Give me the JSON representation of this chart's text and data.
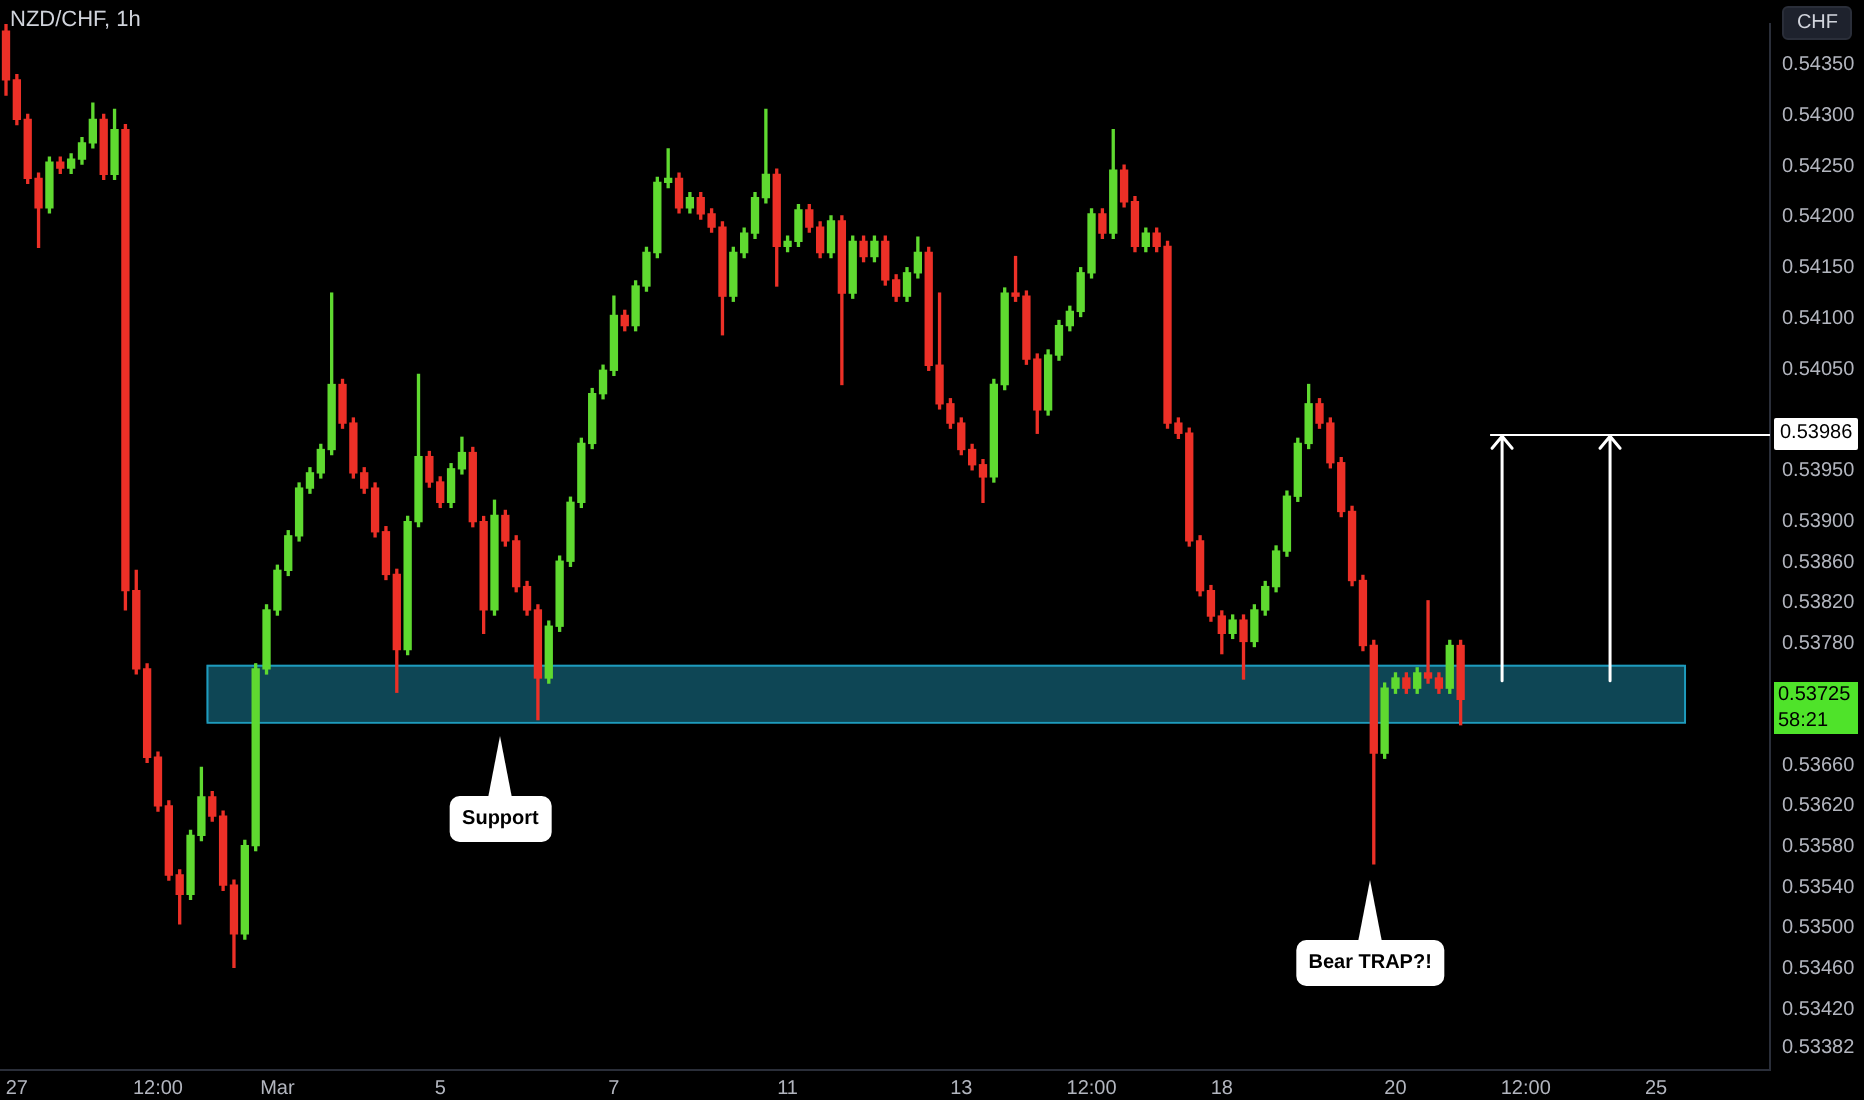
{
  "chart_data": {
    "type": "candlestick",
    "title": "NZD/CHF, 1h",
    "ylabel": "CHF",
    "categories": [
      null,
      "27",
      null,
      null,
      null,
      null,
      null,
      null,
      null,
      null,
      null,
      null,
      null,
      null,
      "12:00",
      null,
      null,
      null,
      null,
      null,
      null,
      null,
      null,
      null,
      null,
      "Mar",
      null,
      null,
      null,
      null,
      null,
      null,
      null,
      null,
      null,
      null,
      null,
      null,
      null,
      null,
      "5",
      null,
      null,
      null,
      null,
      null,
      null,
      null,
      null,
      null,
      null,
      null,
      null,
      null,
      null,
      null,
      "7",
      null,
      null,
      null,
      null,
      null,
      null,
      null,
      null,
      null,
      null,
      null,
      null,
      null,
      null,
      null,
      "11",
      null,
      null,
      null,
      null,
      null,
      null,
      null,
      null,
      null,
      null,
      null,
      null,
      null,
      null,
      null,
      "13",
      null,
      null,
      null,
      null,
      null,
      null,
      null,
      null,
      null,
      null,
      null,
      "12:00",
      null,
      null,
      null,
      null,
      null,
      null,
      null,
      null,
      null,
      null,
      null,
      "18",
      null,
      null,
      null,
      null,
      null,
      null,
      null,
      null,
      null,
      null,
      null,
      null,
      null,
      null,
      null,
      "20",
      null,
      null,
      null,
      null,
      null,
      null,
      null,
      null,
      null,
      null,
      null,
      "12:00",
      null,
      null,
      null,
      null,
      null,
      null,
      null,
      null,
      null,
      null,
      null,
      "25",
      null,
      null,
      null,
      null,
      null,
      null,
      null,
      null,
      null,
      null
    ],
    "ohlc": [
      [
        0.54383,
        0.5439,
        0.5432,
        0.54335
      ],
      [
        0.54335,
        0.5434,
        0.54291,
        0.54296
      ],
      [
        0.54296,
        0.54301,
        0.54233,
        0.54238
      ],
      [
        0.54238,
        0.54243,
        0.5417,
        0.54209
      ],
      [
        0.54209,
        0.54259,
        0.54204,
        0.54254
      ],
      [
        0.54254,
        0.54259,
        0.54243,
        0.54248
      ],
      [
        0.54248,
        0.54262,
        0.54243,
        0.54257
      ],
      [
        0.54257,
        0.54278,
        0.54252,
        0.54273
      ],
      [
        0.54273,
        0.54312,
        0.54268,
        0.54296
      ],
      [
        0.54296,
        0.54301,
        0.54237,
        0.54242
      ],
      [
        0.54242,
        0.54306,
        0.54237,
        0.54286
      ],
      [
        0.54286,
        0.54291,
        0.53813,
        0.53832
      ],
      [
        0.53832,
        0.53852,
        0.5375,
        0.53755
      ],
      [
        0.53755,
        0.5376,
        0.53663,
        0.53668
      ],
      [
        0.53668,
        0.53673,
        0.53615,
        0.5362
      ],
      [
        0.5362,
        0.53625,
        0.53547,
        0.53552
      ],
      [
        0.53552,
        0.53557,
        0.53504,
        0.53533
      ],
      [
        0.53533,
        0.53596,
        0.53528,
        0.53591
      ],
      [
        0.53591,
        0.53658,
        0.53586,
        0.53629
      ],
      [
        0.53629,
        0.53634,
        0.53605,
        0.5361
      ],
      [
        0.5361,
        0.53615,
        0.53537,
        0.53542
      ],
      [
        0.53542,
        0.53547,
        0.53461,
        0.53494
      ],
      [
        0.53494,
        0.53586,
        0.53489,
        0.53581
      ],
      [
        0.53581,
        0.5376,
        0.53576,
        0.53755
      ],
      [
        0.53755,
        0.53818,
        0.5375,
        0.53813
      ],
      [
        0.53813,
        0.53857,
        0.53808,
        0.53852
      ],
      [
        0.53852,
        0.53891,
        0.53847,
        0.53886
      ],
      [
        0.53886,
        0.53938,
        0.53881,
        0.53933
      ],
      [
        0.53933,
        0.53953,
        0.53928,
        0.53948
      ],
      [
        0.53948,
        0.53976,
        0.53943,
        0.53971
      ],
      [
        0.53971,
        0.54125,
        0.53966,
        0.54035
      ],
      [
        0.54035,
        0.5404,
        0.53992,
        0.53997
      ],
      [
        0.53997,
        0.54002,
        0.53943,
        0.53948
      ],
      [
        0.53948,
        0.53953,
        0.53928,
        0.53933
      ],
      [
        0.53933,
        0.53938,
        0.53885,
        0.5389
      ],
      [
        0.5389,
        0.53895,
        0.53843,
        0.53848
      ],
      [
        0.53848,
        0.53853,
        0.53732,
        0.53774
      ],
      [
        0.53774,
        0.53905,
        0.53769,
        0.539
      ],
      [
        0.539,
        0.54045,
        0.53895,
        0.53964
      ],
      [
        0.53964,
        0.53969,
        0.53934,
        0.53939
      ],
      [
        0.53939,
        0.53944,
        0.53914,
        0.53919
      ],
      [
        0.53919,
        0.53957,
        0.53914,
        0.53952
      ],
      [
        0.53952,
        0.53983,
        0.53947,
        0.53968
      ],
      [
        0.53968,
        0.53973,
        0.53895,
        0.539
      ],
      [
        0.539,
        0.53905,
        0.5379,
        0.53813
      ],
      [
        0.53813,
        0.53921,
        0.53808,
        0.53906
      ],
      [
        0.53906,
        0.53911,
        0.53876,
        0.53881
      ],
      [
        0.53881,
        0.53886,
        0.53831,
        0.53836
      ],
      [
        0.53836,
        0.53841,
        0.53808,
        0.53813
      ],
      [
        0.53813,
        0.53818,
        0.53705,
        0.53746
      ],
      [
        0.53746,
        0.53802,
        0.53741,
        0.53797
      ],
      [
        0.53797,
        0.53866,
        0.53792,
        0.53861
      ],
      [
        0.53861,
        0.53924,
        0.53856,
        0.53919
      ],
      [
        0.53919,
        0.53982,
        0.53914,
        0.53977
      ],
      [
        0.53977,
        0.54031,
        0.53972,
        0.54026
      ],
      [
        0.54026,
        0.54054,
        0.54021,
        0.54049
      ],
      [
        0.54049,
        0.54122,
        0.54044,
        0.54103
      ],
      [
        0.54103,
        0.54108,
        0.54088,
        0.54093
      ],
      [
        0.54093,
        0.54137,
        0.54088,
        0.54132
      ],
      [
        0.54132,
        0.5417,
        0.54127,
        0.54165
      ],
      [
        0.54165,
        0.54239,
        0.5416,
        0.54234
      ],
      [
        0.54234,
        0.54267,
        0.54229,
        0.54238
      ],
      [
        0.54238,
        0.54243,
        0.54204,
        0.54209
      ],
      [
        0.54209,
        0.54224,
        0.54204,
        0.54219
      ],
      [
        0.54219,
        0.54224,
        0.54198,
        0.54203
      ],
      [
        0.54203,
        0.54208,
        0.54185,
        0.5419
      ],
      [
        0.5419,
        0.54195,
        0.54084,
        0.54122
      ],
      [
        0.54122,
        0.5417,
        0.54117,
        0.54165
      ],
      [
        0.54165,
        0.54189,
        0.5416,
        0.54184
      ],
      [
        0.54184,
        0.54224,
        0.54179,
        0.54219
      ],
      [
        0.54219,
        0.54306,
        0.54214,
        0.54242
      ],
      [
        0.54242,
        0.54247,
        0.54132,
        0.54171
      ],
      [
        0.54171,
        0.54181,
        0.54166,
        0.54176
      ],
      [
        0.54176,
        0.54212,
        0.54171,
        0.54207
      ],
      [
        0.54207,
        0.54212,
        0.54185,
        0.5419
      ],
      [
        0.5419,
        0.54195,
        0.5416,
        0.54165
      ],
      [
        0.54165,
        0.54201,
        0.5416,
        0.54196
      ],
      [
        0.54196,
        0.54201,
        0.54035,
        0.54125
      ],
      [
        0.54125,
        0.54181,
        0.5412,
        0.54176
      ],
      [
        0.54176,
        0.54181,
        0.54156,
        0.54161
      ],
      [
        0.54161,
        0.54181,
        0.54156,
        0.54176
      ],
      [
        0.54176,
        0.54181,
        0.54133,
        0.54138
      ],
      [
        0.54138,
        0.54143,
        0.54117,
        0.54122
      ],
      [
        0.54122,
        0.5415,
        0.54117,
        0.54145
      ],
      [
        0.54145,
        0.5418,
        0.5414,
        0.54165
      ],
      [
        0.54165,
        0.5417,
        0.54049,
        0.54054
      ],
      [
        0.54054,
        0.54125,
        0.54011,
        0.54016
      ],
      [
        0.54016,
        0.54021,
        0.53992,
        0.53997
      ],
      [
        0.53997,
        0.54002,
        0.53966,
        0.53971
      ],
      [
        0.53971,
        0.53976,
        0.53951,
        0.53956
      ],
      [
        0.53956,
        0.53961,
        0.53919,
        0.53944
      ],
      [
        0.53944,
        0.5404,
        0.53939,
        0.54035
      ],
      [
        0.54035,
        0.5413,
        0.5403,
        0.54125
      ],
      [
        0.54125,
        0.54161,
        0.54117,
        0.54122
      ],
      [
        0.54122,
        0.54127,
        0.54055,
        0.5406
      ],
      [
        0.5406,
        0.54065,
        0.53987,
        0.5401
      ],
      [
        0.5401,
        0.54069,
        0.54005,
        0.54064
      ],
      [
        0.54064,
        0.54098,
        0.54059,
        0.54093
      ],
      [
        0.54093,
        0.54112,
        0.54088,
        0.54107
      ],
      [
        0.54107,
        0.5415,
        0.54102,
        0.54145
      ],
      [
        0.54145,
        0.54208,
        0.5414,
        0.54203
      ],
      [
        0.54203,
        0.54208,
        0.54179,
        0.54184
      ],
      [
        0.54184,
        0.54286,
        0.54179,
        0.54246
      ],
      [
        0.54246,
        0.54251,
        0.5421,
        0.54215
      ],
      [
        0.54215,
        0.5422,
        0.54166,
        0.54171
      ],
      [
        0.54171,
        0.54189,
        0.54166,
        0.54184
      ],
      [
        0.54184,
        0.54189,
        0.54166,
        0.54171
      ],
      [
        0.54171,
        0.54176,
        0.53992,
        0.53997
      ],
      [
        0.53997,
        0.54002,
        0.53982,
        0.53987
      ],
      [
        0.53987,
        0.53992,
        0.53876,
        0.53881
      ],
      [
        0.53881,
        0.53886,
        0.53827,
        0.53832
      ],
      [
        0.53832,
        0.53837,
        0.53802,
        0.53807
      ],
      [
        0.53807,
        0.53812,
        0.5377,
        0.5379
      ],
      [
        0.5379,
        0.53808,
        0.53785,
        0.53803
      ],
      [
        0.53803,
        0.53808,
        0.53745,
        0.53782
      ],
      [
        0.53782,
        0.53818,
        0.53777,
        0.53813
      ],
      [
        0.53813,
        0.53841,
        0.53808,
        0.53836
      ],
      [
        0.53836,
        0.53876,
        0.53831,
        0.53871
      ],
      [
        0.53871,
        0.5393,
        0.53866,
        0.53925
      ],
      [
        0.53925,
        0.53982,
        0.5392,
        0.53977
      ],
      [
        0.53977,
        0.54035,
        0.53972,
        0.54016
      ],
      [
        0.54016,
        0.54021,
        0.53992,
        0.53997
      ],
      [
        0.53997,
        0.54002,
        0.53953,
        0.53958
      ],
      [
        0.53958,
        0.53963,
        0.53905,
        0.5391
      ],
      [
        0.5391,
        0.53915,
        0.53837,
        0.53842
      ],
      [
        0.53842,
        0.53847,
        0.53773,
        0.53778
      ],
      [
        0.53778,
        0.53783,
        0.53563,
        0.53672
      ],
      [
        0.53672,
        0.53741,
        0.53667,
        0.53736
      ],
      [
        0.53736,
        0.53751,
        0.53731,
        0.53746
      ],
      [
        0.53746,
        0.53751,
        0.53731,
        0.53736
      ],
      [
        0.53736,
        0.53756,
        0.53731,
        0.53751
      ],
      [
        0.53751,
        0.53822,
        0.53741,
        0.53746
      ],
      [
        0.53746,
        0.53751,
        0.53731,
        0.53736
      ],
      [
        0.53736,
        0.53783,
        0.53731,
        0.53778
      ],
      [
        0.53778,
        0.53783,
        0.537,
        0.53725
      ],
      null,
      null,
      null,
      null,
      null,
      null,
      null,
      null,
      null,
      null,
      null,
      null,
      null,
      null,
      null,
      null,
      null,
      null,
      null,
      null,
      null,
      null,
      null,
      null,
      null,
      null,
      null,
      null
    ],
    "ylim": [
      0.5336,
      0.5439
    ],
    "yticks": [
      {
        "value": 0.5435,
        "label": "0.54350"
      },
      {
        "value": 0.543,
        "label": "0.54300"
      },
      {
        "value": 0.5425,
        "label": "0.54250"
      },
      {
        "value": 0.542,
        "label": "0.54200"
      },
      {
        "value": 0.5415,
        "label": "0.54150"
      },
      {
        "value": 0.541,
        "label": "0.54100"
      },
      {
        "value": 0.5405,
        "label": "0.54050"
      },
      {
        "value": 0.5395,
        "label": "0.53950"
      },
      {
        "value": 0.539,
        "label": "0.53900"
      },
      {
        "value": 0.5386,
        "label": "0.53860"
      },
      {
        "value": 0.5382,
        "label": "0.53820"
      },
      {
        "value": 0.5378,
        "label": "0.53780"
      },
      {
        "value": 0.5366,
        "label": "0.53660"
      },
      {
        "value": 0.5362,
        "label": "0.53620"
      },
      {
        "value": 0.5358,
        "label": "0.53580"
      },
      {
        "value": 0.5354,
        "label": "0.53540"
      },
      {
        "value": 0.535,
        "label": "0.53500"
      },
      {
        "value": 0.5346,
        "label": "0.53460"
      },
      {
        "value": 0.5342,
        "label": "0.53420"
      },
      {
        "value": 0.53382,
        "label": "0.53382"
      }
    ],
    "bands": [
      {
        "axis": "y",
        "from": 0.53703,
        "to": 0.53759,
        "color": "#1e9bbd"
      }
    ],
    "ref_lines": [
      {
        "axis": "y",
        "value": 0.53986,
        "label": "0.53986",
        "color": "#ffffff"
      }
    ],
    "annotations": [
      "Support",
      "Bear TRAP?!",
      "0.53725",
      "58:21"
    ],
    "legend": false
  }
}
